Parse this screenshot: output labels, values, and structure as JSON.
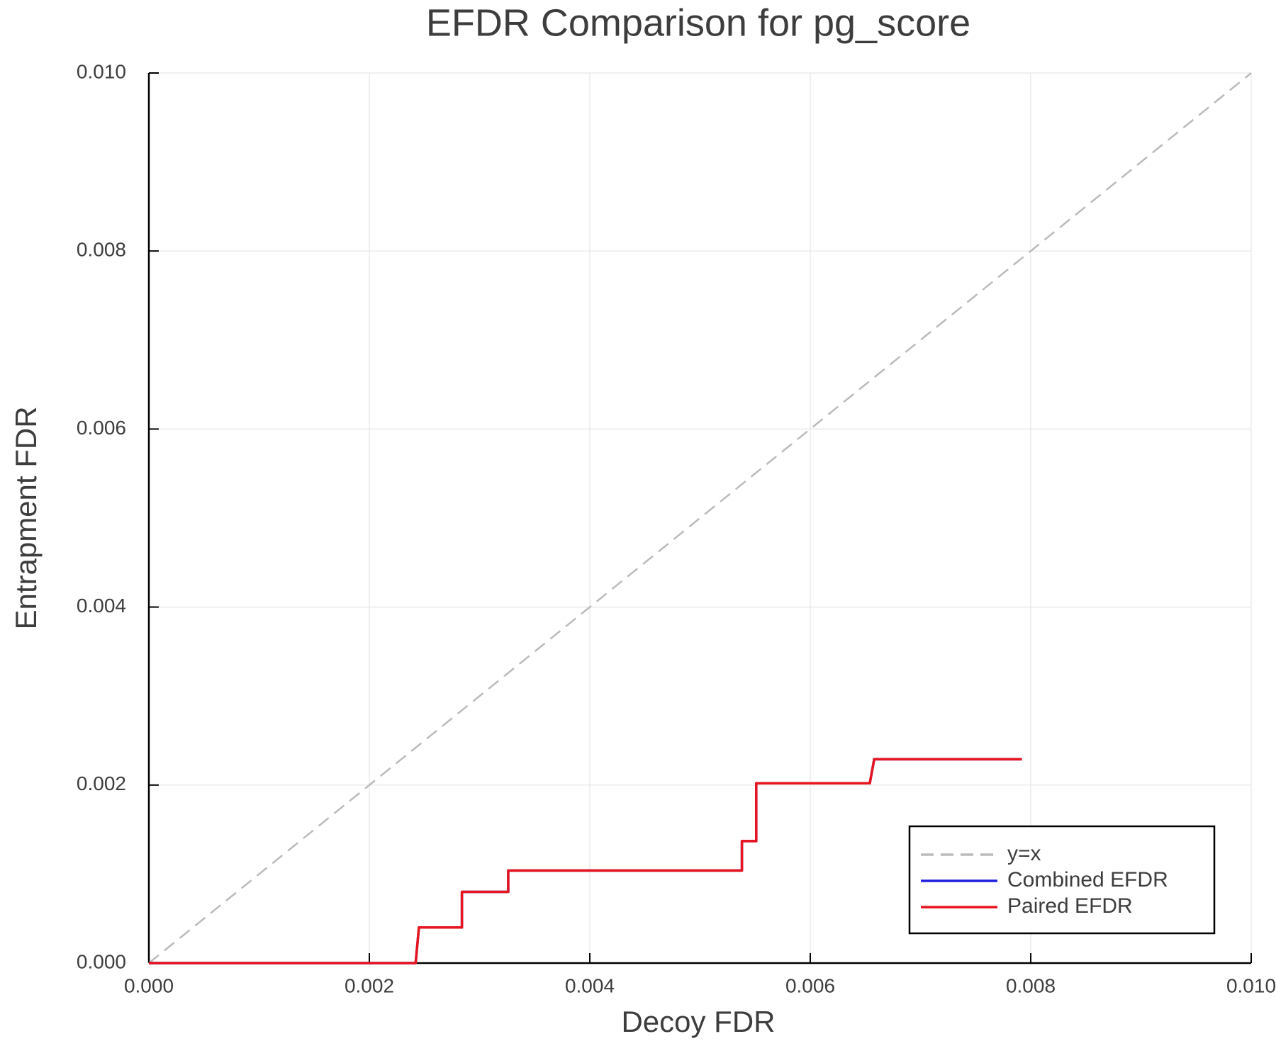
{
  "chart_data": {
    "type": "line",
    "title": "EFDR Comparison for pg_score",
    "x_label": "Decoy FDR",
    "y_label": "Entrapment FDR",
    "xlim": [
      0,
      0.01
    ],
    "ylim": [
      0,
      0.01
    ],
    "xticks": [
      {
        "value": 0,
        "label": "0.000"
      },
      {
        "value": 0.002,
        "label": "0.002"
      },
      {
        "value": 0.004,
        "label": "0.004"
      },
      {
        "value": 0.006,
        "label": "0.006"
      },
      {
        "value": 0.008,
        "label": "0.008"
      },
      {
        "value": 0.01,
        "label": "0.010"
      }
    ],
    "yticks": [
      {
        "value": 0,
        "label": "0.000"
      },
      {
        "value": 0.002,
        "label": "0.002"
      },
      {
        "value": 0.004,
        "label": "0.004"
      },
      {
        "value": 0.006,
        "label": "0.006"
      },
      {
        "value": 0.008,
        "label": "0.008"
      },
      {
        "value": 0.01,
        "label": "0.010"
      }
    ],
    "grid": true,
    "legend": "lower right",
    "series": [
      {
        "name": "y=x",
        "color": "#bbbbbb",
        "linestyle": "dashed",
        "x": [
          0,
          0.01
        ],
        "values": [
          0,
          0.01
        ]
      },
      {
        "name": "Combined EFDR",
        "color": "#1f1fe0",
        "linestyle": "solid",
        "x": [
          0,
          0.00242,
          0.00245,
          0.00284,
          0.00284,
          0.00326,
          0.00326,
          0.00538,
          0.00538,
          0.00551,
          0.00551,
          0.00654,
          0.00658,
          0.00792
        ],
        "values": [
          0,
          0,
          0.0004,
          0.0004,
          0.0008,
          0.0008,
          0.00104,
          0.00104,
          0.00137,
          0.00137,
          0.00202,
          0.00202,
          0.00229,
          0.00229
        ]
      },
      {
        "name": "Paired EFDR",
        "color": "#e8141e",
        "linestyle": "solid",
        "x": [
          0,
          0.00242,
          0.00245,
          0.00284,
          0.00284,
          0.00326,
          0.00326,
          0.00538,
          0.00538,
          0.00551,
          0.00551,
          0.00654,
          0.00658,
          0.00792
        ],
        "values": [
          0,
          0,
          0.0004,
          0.0004,
          0.0008,
          0.0008,
          0.00104,
          0.00104,
          0.00137,
          0.00137,
          0.00202,
          0.00202,
          0.00229,
          0.00229
        ]
      }
    ]
  }
}
